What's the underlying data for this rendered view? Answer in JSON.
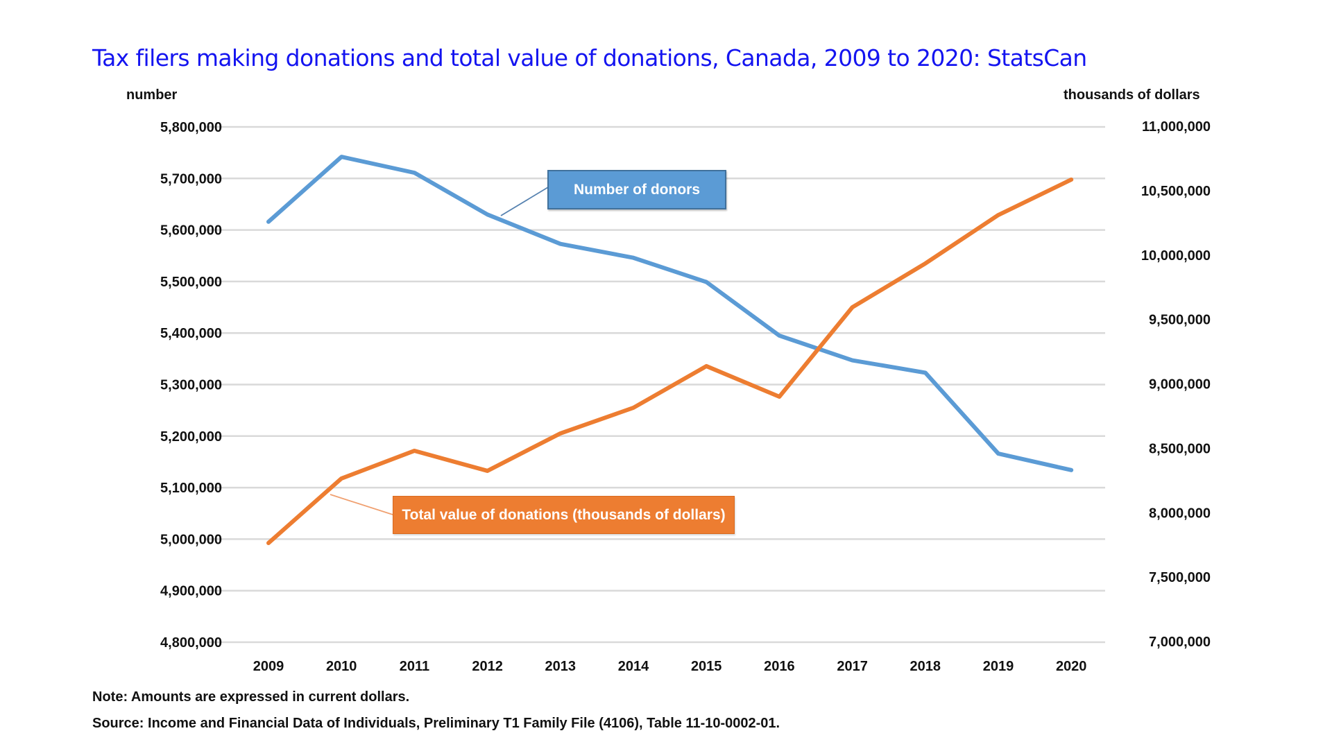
{
  "chart_data": {
    "type": "line",
    "title": "Tax filers making donations and total value of donations, Canada, 2009 to 2020: StatsCan",
    "x": [
      "2009",
      "2010",
      "2011",
      "2012",
      "2013",
      "2014",
      "2015",
      "2016",
      "2017",
      "2018",
      "2019",
      "2020"
    ],
    "xlabel": "",
    "y_left": {
      "label": "number",
      "range": [
        4800000,
        5800000
      ],
      "ticks": [
        "4,800,000",
        "4,900,000",
        "5,000,000",
        "5,100,000",
        "5,200,000",
        "5,300,000",
        "5,400,000",
        "5,500,000",
        "5,600,000",
        "5,700,000",
        "5,800,000"
      ]
    },
    "y_right": {
      "label": "thousands of dollars",
      "range": [
        7000000,
        11000000
      ],
      "ticks": [
        "7,000,000",
        "7,500,000",
        "8,000,000",
        "8,500,000",
        "9,000,000",
        "9,500,000",
        "10,000,000",
        "10,500,000",
        "11,000,000"
      ]
    },
    "series": [
      {
        "name": "Number of donors",
        "axis": "left",
        "color": "#5b9bd5",
        "values": [
          5616000,
          5742000,
          5711000,
          5630000,
          5573000,
          5546000,
          5499000,
          5395000,
          5347000,
          5323000,
          5166000,
          5134000
        ]
      },
      {
        "name": "Total value of donations (thousands of dollars)",
        "axis": "right",
        "color": "#ed7d31",
        "values": [
          7770000,
          8271000,
          8486000,
          8330000,
          8621000,
          8820000,
          9143000,
          8906000,
          9600000,
          9940000,
          10316000,
          10591000
        ]
      }
    ],
    "grid": true,
    "legend": "callout labels on lines",
    "notes": [
      "Note: Amounts are expressed in current dollars.",
      "Source: Income and Financial Data of Individuals, Preliminary T1 Family File (4106), Table 11-10-0002-01."
    ]
  },
  "labels": {
    "title": "Tax filers making donations and total value of donations, Canada, 2009 to 2020: StatsCan",
    "left_unit": "number",
    "right_unit": "thousands of dollars",
    "callout_donors": "Number of donors",
    "callout_value": "Total value of donations (thousands of dollars)",
    "note": "Note: Amounts are expressed in current dollars.",
    "source": "Source: Income and Financial Data of Individuals, Preliminary T1 Family File (4106), Table 11-10-0002-01."
  },
  "colors": {
    "title": "#1414f0",
    "grid": "#d9d9d9",
    "donors": "#5b9bd5",
    "value": "#ed7d31"
  }
}
